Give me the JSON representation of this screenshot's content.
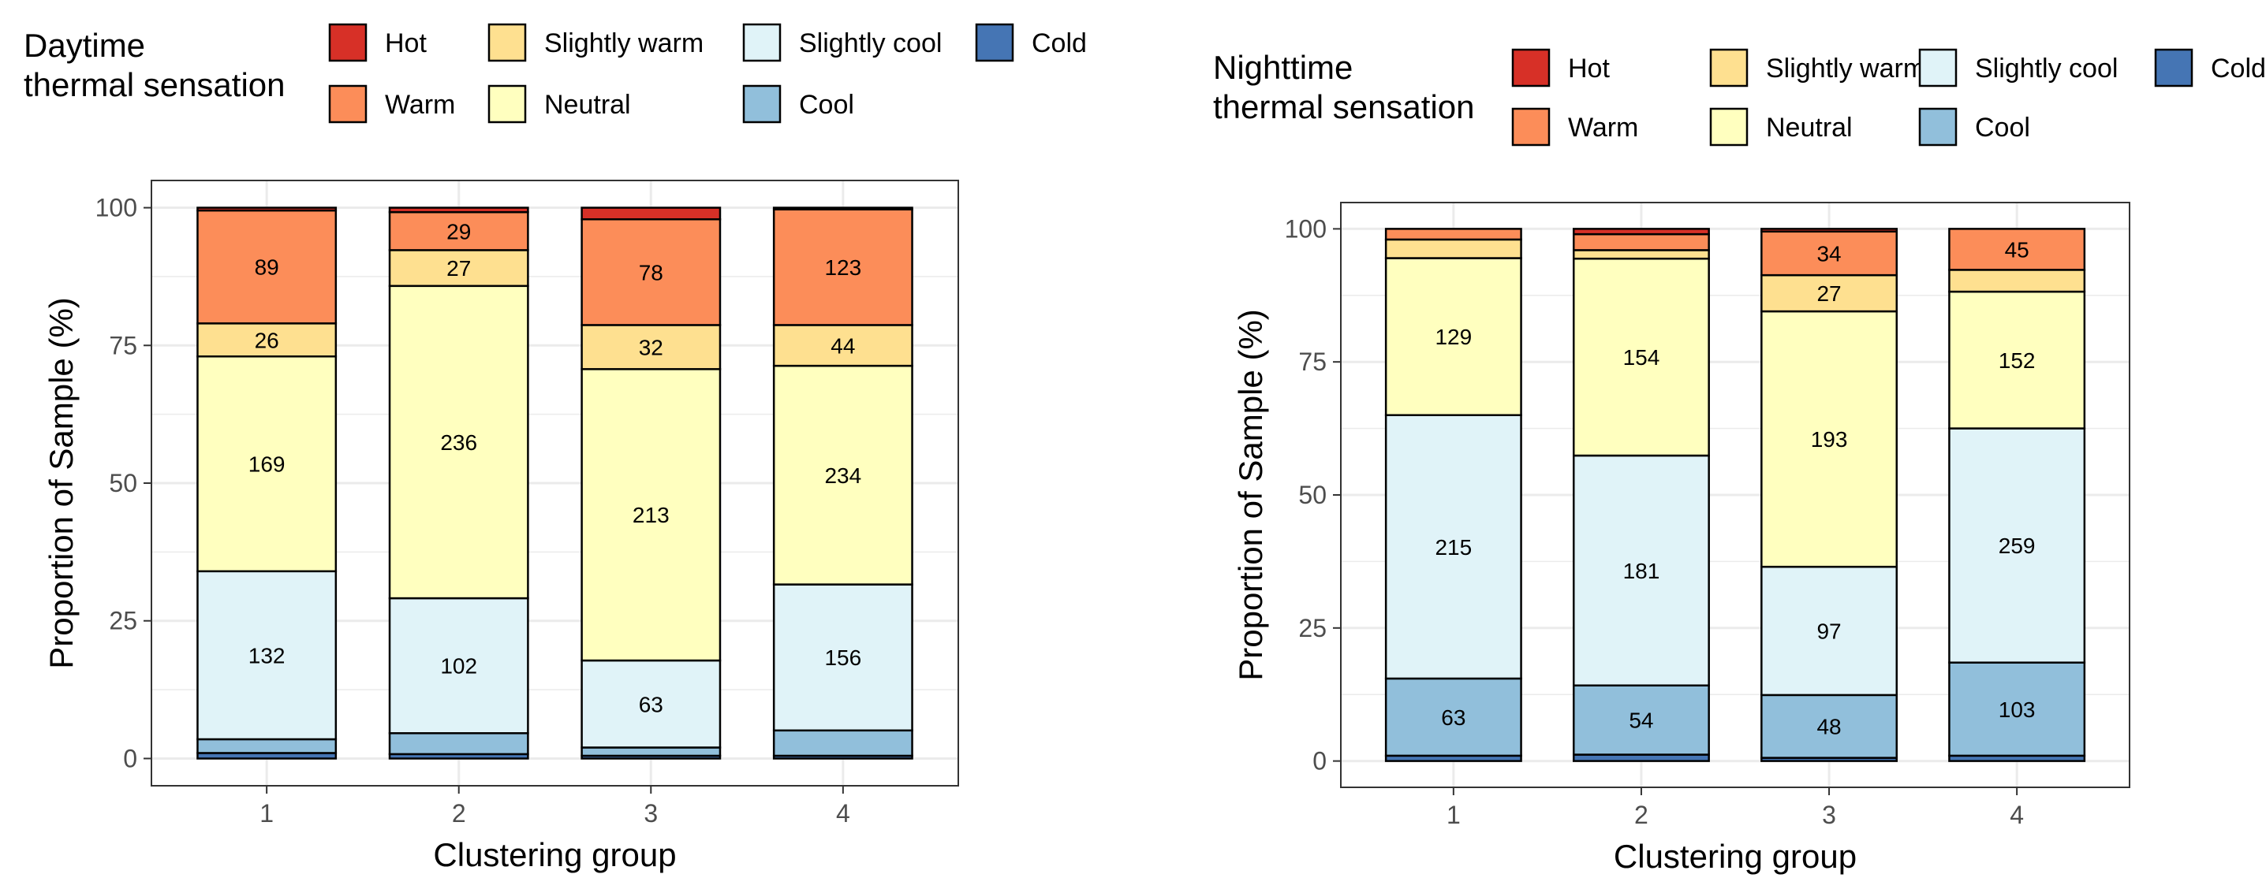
{
  "chart_data": [
    {
      "type": "bar",
      "stacked": true,
      "title": "",
      "xlabel": "Clustering group",
      "ylabel": "Proportion of Sample (%)",
      "ylim": [
        0,
        100
      ],
      "yticks": [
        0,
        25,
        50,
        75,
        100
      ],
      "grid": true,
      "legend": {
        "title_lines": [
          "Daytime",
          "thermal sensation"
        ],
        "placement": "top"
      },
      "categories": [
        "1",
        "2",
        "3",
        "4"
      ],
      "series": [
        {
          "name": "Cold",
          "color": "#4575b4",
          "values": [
            1,
            0.8,
            0.5,
            0.5
          ],
          "labels": [
            "",
            "",
            "",
            ""
          ]
        },
        {
          "name": "Cool",
          "color": "#91bfdb",
          "values": [
            2.5,
            3.8,
            1.5,
            4.6
          ],
          "labels": [
            "",
            "",
            "",
            ""
          ]
        },
        {
          "name": "Slightly cool",
          "color": "#e0f3f8",
          "values": [
            30.5,
            24.5,
            15.8,
            26.5
          ],
          "labels": [
            "132",
            "102",
            "63",
            "156"
          ]
        },
        {
          "name": "Neutral",
          "color": "#ffffbf",
          "values": [
            39,
            56.7,
            52.9,
            39.7
          ],
          "labels": [
            "169",
            "236",
            "213",
            "234"
          ]
        },
        {
          "name": "Slightly warm",
          "color": "#fee090",
          "values": [
            6,
            6.5,
            8,
            7.4
          ],
          "labels": [
            "26",
            "27",
            "32",
            "44"
          ]
        },
        {
          "name": "Warm",
          "color": "#fc8d59",
          "values": [
            20.5,
            6.9,
            19.2,
            21
          ],
          "labels": [
            "89",
            "29",
            "78",
            "123"
          ]
        },
        {
          "name": "Hot",
          "color": "#d73027",
          "values": [
            0.5,
            0.8,
            2.1,
            0.3
          ],
          "labels": [
            "",
            "",
            "",
            ""
          ]
        }
      ]
    },
    {
      "type": "bar",
      "stacked": true,
      "title": "",
      "xlabel": "Clustering group",
      "ylabel": "Proportion of Sample (%)",
      "ylim": [
        0,
        100
      ],
      "yticks": [
        0,
        25,
        50,
        75,
        100
      ],
      "grid": true,
      "legend": {
        "title_lines": [
          "Nighttime",
          "thermal sensation"
        ],
        "placement": "top"
      },
      "categories": [
        "1",
        "2",
        "3",
        "4"
      ],
      "series": [
        {
          "name": "Cold",
          "color": "#4575b4",
          "values": [
            1,
            1.2,
            0.6,
            1
          ],
          "labels": [
            "",
            "",
            "",
            ""
          ]
        },
        {
          "name": "Cool",
          "color": "#91bfdb",
          "values": [
            14.5,
            13,
            11.8,
            17.5
          ],
          "labels": [
            "63",
            "54",
            "48",
            "103"
          ]
        },
        {
          "name": "Slightly cool",
          "color": "#e0f3f8",
          "values": [
            49.5,
            43.2,
            24.1,
            44
          ],
          "labels": [
            "215",
            "181",
            "97",
            "259"
          ]
        },
        {
          "name": "Neutral",
          "color": "#ffffbf",
          "values": [
            29.5,
            37,
            48,
            25.7
          ],
          "labels": [
            "129",
            "154",
            "193",
            "152"
          ]
        },
        {
          "name": "Slightly warm",
          "color": "#fee090",
          "values": [
            3.5,
            1.6,
            6.8,
            4.1
          ],
          "labels": [
            "",
            "",
            "27",
            ""
          ]
        },
        {
          "name": "Warm",
          "color": "#fc8d59",
          "values": [
            2,
            3,
            8.2,
            7.7
          ],
          "labels": [
            "",
            "",
            "34",
            "45"
          ]
        },
        {
          "name": "Hot",
          "color": "#d73027",
          "values": [
            0,
            1,
            0.5,
            0
          ],
          "labels": [
            "",
            "",
            "",
            ""
          ]
        }
      ]
    }
  ],
  "legend_order": [
    [
      "Hot",
      "Slightly warm",
      "Slightly cool",
      "Cold"
    ],
    [
      "Warm",
      "Neutral",
      "Cool"
    ]
  ],
  "legend_colors": {
    "Hot": "#d73027",
    "Warm": "#fc8d59",
    "Slightly warm": "#fee090",
    "Neutral": "#ffffbf",
    "Slightly cool": "#e0f3f8",
    "Cool": "#91bfdb",
    "Cold": "#4575b4"
  },
  "colors": {
    "grid": "#ebebeb",
    "panel_border": "#333333",
    "tick_text": "#4d4d4d",
    "bar_outline": "#000000"
  }
}
